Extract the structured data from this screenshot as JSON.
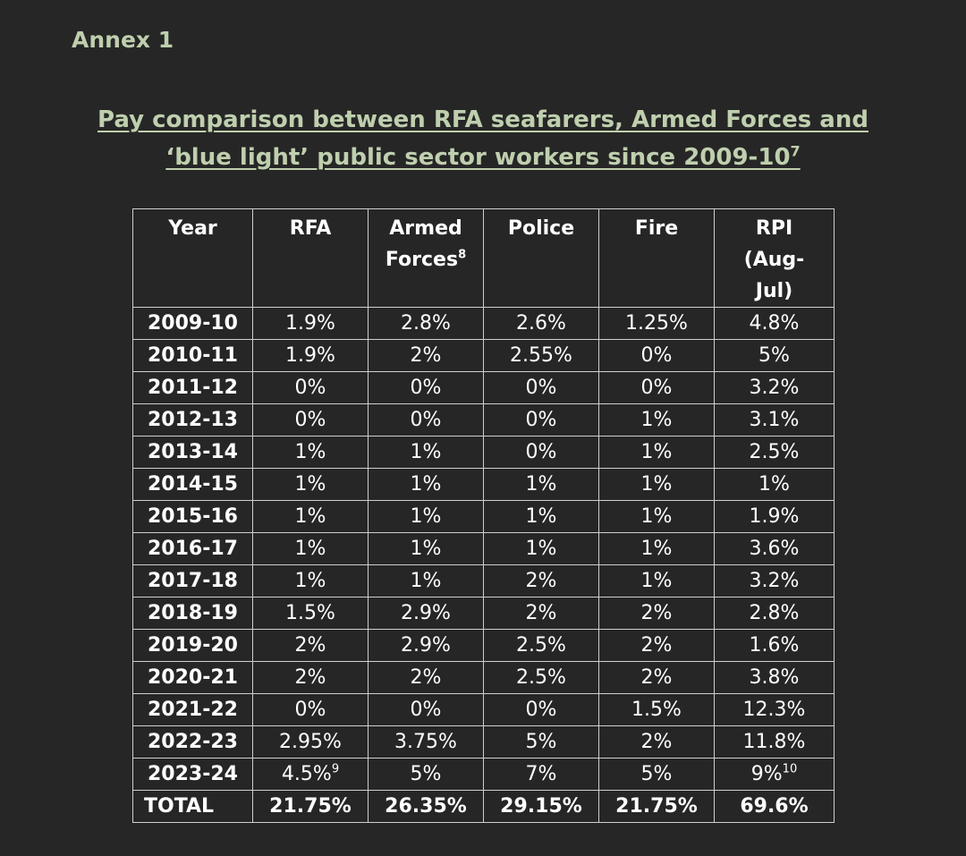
{
  "annex_label": "Annex 1",
  "title": {
    "line1": "Pay comparison between RFA seafarers, Armed Forces and",
    "line2": "‘blue light’ public sector workers since 2009-10",
    "footnote": "7"
  },
  "table": {
    "headers": {
      "year": "Year",
      "rfa": "RFA",
      "armed_line1": "Armed",
      "armed_line2": "Forces",
      "armed_footnote": "8",
      "police": "Police",
      "fire": "Fire",
      "rpi_line1": "RPI",
      "rpi_line2": "(Aug-",
      "rpi_line3": "Jul)"
    },
    "rows": [
      {
        "year": "2009-10",
        "rfa": "1.9%",
        "armed": "2.8%",
        "police": "2.6%",
        "fire": "1.25%",
        "rpi": "4.8%"
      },
      {
        "year": "2010-11",
        "rfa": "1.9%",
        "armed": "2%",
        "police": "2.55%",
        "fire": "0%",
        "rpi": "5%"
      },
      {
        "year": "2011-12",
        "rfa": "0%",
        "armed": "0%",
        "police": "0%",
        "fire": "0%",
        "rpi": "3.2%"
      },
      {
        "year": "2012-13",
        "rfa": "0%",
        "armed": "0%",
        "police": "0%",
        "fire": "1%",
        "rpi": "3.1%"
      },
      {
        "year": "2013-14",
        "rfa": "1%",
        "armed": "1%",
        "police": "0%",
        "fire": "1%",
        "rpi": "2.5%"
      },
      {
        "year": "2014-15",
        "rfa": "1%",
        "armed": "1%",
        "police": "1%",
        "fire": "1%",
        "rpi": "1%"
      },
      {
        "year": "2015-16",
        "rfa": "1%",
        "armed": "1%",
        "police": "1%",
        "fire": "1%",
        "rpi": "1.9%"
      },
      {
        "year": "2016-17",
        "rfa": "1%",
        "armed": "1%",
        "police": "1%",
        "fire": "1%",
        "rpi": "3.6%"
      },
      {
        "year": "2017-18",
        "rfa": "1%",
        "armed": "1%",
        "police": "2%",
        "fire": "1%",
        "rpi": "3.2%"
      },
      {
        "year": "2018-19",
        "rfa": "1.5%",
        "armed": "2.9%",
        "police": "2%",
        "fire": "2%",
        "rpi": "2.8%"
      },
      {
        "year": "2019-20",
        "rfa": "2%",
        "armed": "2.9%",
        "police": "2.5%",
        "fire": "2%",
        "rpi": "1.6%"
      },
      {
        "year": "2020-21",
        "rfa": "2%",
        "armed": "2%",
        "police": "2.5%",
        "fire": "2%",
        "rpi": "3.8%"
      },
      {
        "year": "2021-22",
        "rfa": "0%",
        "armed": "0%",
        "police": "0%",
        "fire": "1.5%",
        "rpi": "12.3%"
      },
      {
        "year": "2022-23",
        "rfa": "2.95%",
        "armed": "3.75%",
        "police": "5%",
        "fire": "2%",
        "rpi": "11.8%"
      },
      {
        "year": "2023-24",
        "rfa": "4.5%",
        "rfa_footnote": "9",
        "armed": "5%",
        "police": "7%",
        "fire": "5%",
        "rpi": "9%",
        "rpi_footnote": "10"
      }
    ],
    "total": {
      "label": "TOTAL",
      "rfa": "21.75%",
      "armed": "26.35%",
      "police": "29.15%",
      "fire": "21.75%",
      "rpi": "69.6%"
    }
  },
  "colors": {
    "background": "#262626",
    "heading_green": "#bfcfae",
    "text": "#ffffff",
    "border": "#cfcfcf"
  }
}
